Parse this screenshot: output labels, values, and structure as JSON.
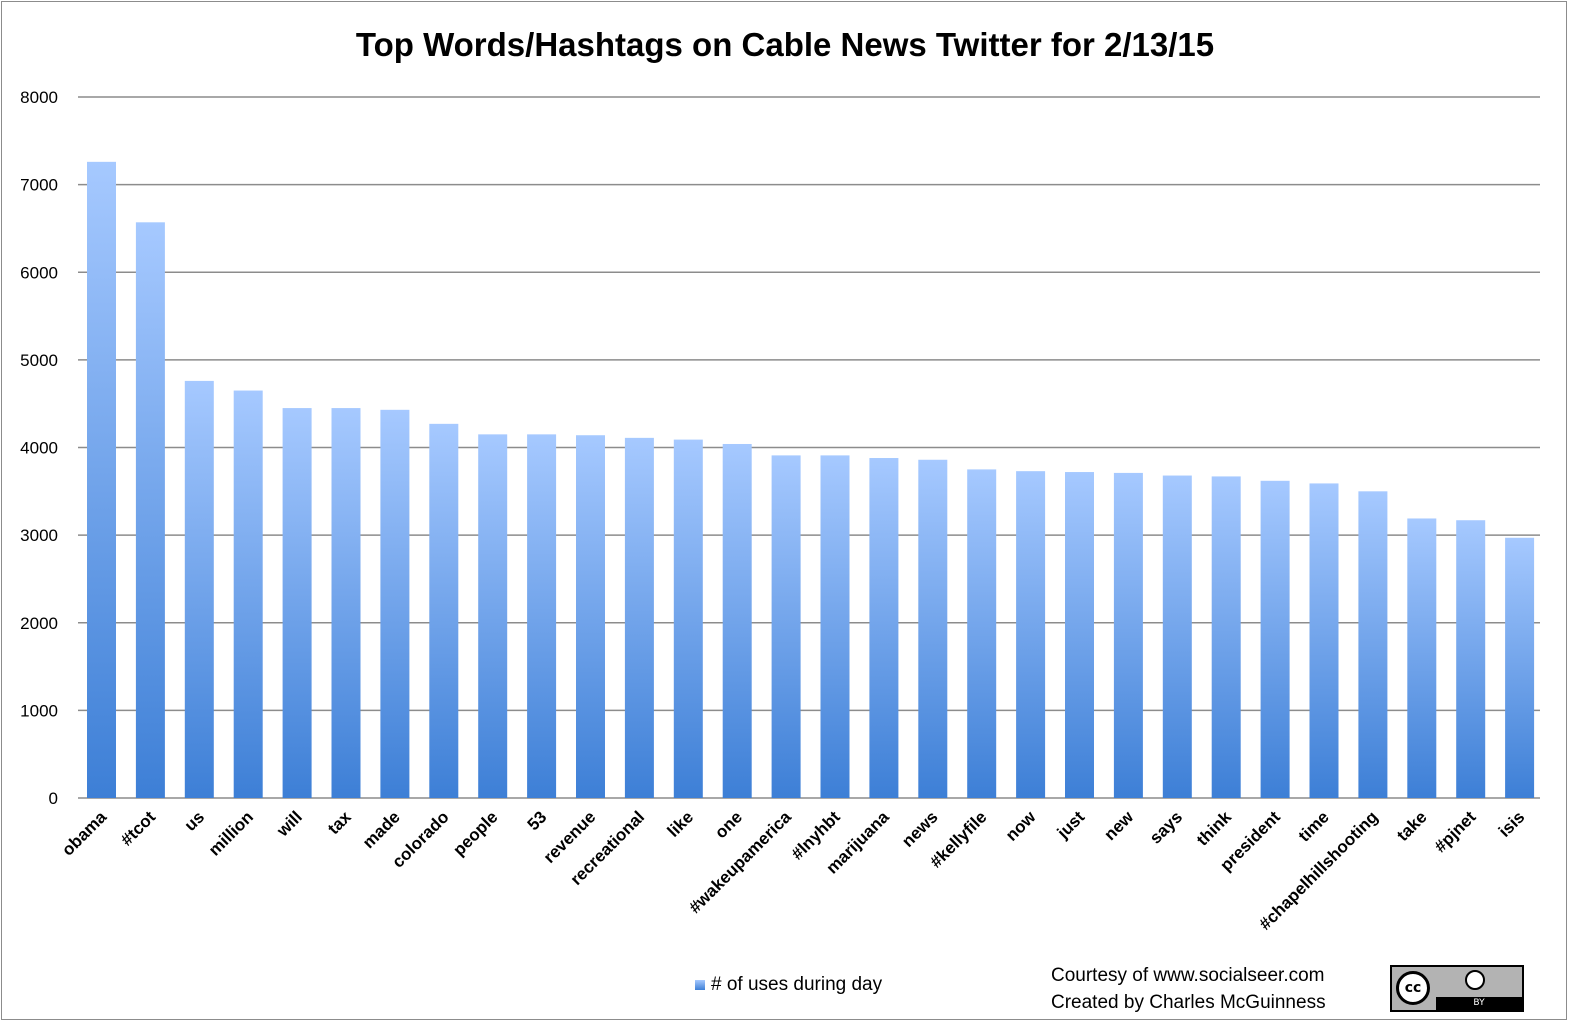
{
  "chart_data": {
    "type": "bar",
    "title": "Top Words/Hashtags on Cable News Twitter for 2/13/15",
    "xlabel": "",
    "ylabel": "",
    "ylim": [
      0,
      8000
    ],
    "yticks": [
      0,
      1000,
      2000,
      3000,
      4000,
      5000,
      6000,
      7000,
      8000
    ],
    "grid": true,
    "legend_position": "bottom",
    "categories": [
      "obama",
      "#tcot",
      "us",
      "million",
      "will",
      "tax",
      "made",
      "colorado",
      "people",
      "53",
      "revenue",
      "recreational",
      "like",
      "one",
      "#wakeupamerica",
      "#lnyhbt",
      "marijuana",
      "news",
      "#kellyfile",
      "now",
      "just",
      "new",
      "says",
      "think",
      "president",
      "time",
      "#chapelhillshooting",
      "take",
      "#pjnet",
      "isis"
    ],
    "series": [
      {
        "name": "# of uses during day",
        "values": [
          7260,
          6570,
          4760,
          4650,
          4450,
          4450,
          4430,
          4270,
          4150,
          4150,
          4140,
          4110,
          4090,
          4040,
          3910,
          3910,
          3880,
          3860,
          3750,
          3730,
          3720,
          3710,
          3680,
          3670,
          3620,
          3590,
          3500,
          3190,
          3170,
          2970
        ]
      }
    ],
    "colors": {
      "bar_top": "#a6c9ff",
      "bar_bottom": "#3d7fd6",
      "grid": "#8c8c8c"
    }
  },
  "footer": {
    "credit_line1": "Courtesy of www.socialseer.com",
    "credit_line2": "Created by Charles McGuinness",
    "license_badge": "CC BY"
  }
}
